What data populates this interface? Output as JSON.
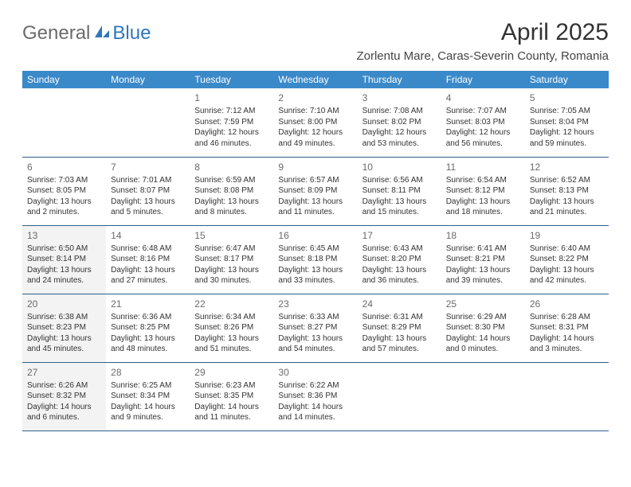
{
  "logo": {
    "general": "General",
    "blue": "Blue"
  },
  "title": "April 2025",
  "location": "Zorlentu Mare, Caras-Severin County, Romania",
  "colors": {
    "header_bg": "#3a89c9",
    "header_text": "#ffffff",
    "row_border": "#2f5f8a",
    "shaded_bg": "#f3f3f3",
    "logo_gray": "#6b6b6b",
    "logo_blue": "#2f77bb"
  },
  "day_headers": [
    "Sunday",
    "Monday",
    "Tuesday",
    "Wednesday",
    "Thursday",
    "Friday",
    "Saturday"
  ],
  "weeks": [
    [
      null,
      null,
      {
        "n": "1",
        "sr": "Sunrise: 7:12 AM",
        "ss": "Sunset: 7:59 PM",
        "dl1": "Daylight: 12 hours",
        "dl2": "and 46 minutes."
      },
      {
        "n": "2",
        "sr": "Sunrise: 7:10 AM",
        "ss": "Sunset: 8:00 PM",
        "dl1": "Daylight: 12 hours",
        "dl2": "and 49 minutes."
      },
      {
        "n": "3",
        "sr": "Sunrise: 7:08 AM",
        "ss": "Sunset: 8:02 PM",
        "dl1": "Daylight: 12 hours",
        "dl2": "and 53 minutes."
      },
      {
        "n": "4",
        "sr": "Sunrise: 7:07 AM",
        "ss": "Sunset: 8:03 PM",
        "dl1": "Daylight: 12 hours",
        "dl2": "and 56 minutes."
      },
      {
        "n": "5",
        "sr": "Sunrise: 7:05 AM",
        "ss": "Sunset: 8:04 PM",
        "dl1": "Daylight: 12 hours",
        "dl2": "and 59 minutes."
      }
    ],
    [
      {
        "n": "6",
        "sr": "Sunrise: 7:03 AM",
        "ss": "Sunset: 8:05 PM",
        "dl1": "Daylight: 13 hours",
        "dl2": "and 2 minutes."
      },
      {
        "n": "7",
        "sr": "Sunrise: 7:01 AM",
        "ss": "Sunset: 8:07 PM",
        "dl1": "Daylight: 13 hours",
        "dl2": "and 5 minutes."
      },
      {
        "n": "8",
        "sr": "Sunrise: 6:59 AM",
        "ss": "Sunset: 8:08 PM",
        "dl1": "Daylight: 13 hours",
        "dl2": "and 8 minutes."
      },
      {
        "n": "9",
        "sr": "Sunrise: 6:57 AM",
        "ss": "Sunset: 8:09 PM",
        "dl1": "Daylight: 13 hours",
        "dl2": "and 11 minutes."
      },
      {
        "n": "10",
        "sr": "Sunrise: 6:56 AM",
        "ss": "Sunset: 8:11 PM",
        "dl1": "Daylight: 13 hours",
        "dl2": "and 15 minutes."
      },
      {
        "n": "11",
        "sr": "Sunrise: 6:54 AM",
        "ss": "Sunset: 8:12 PM",
        "dl1": "Daylight: 13 hours",
        "dl2": "and 18 minutes."
      },
      {
        "n": "12",
        "sr": "Sunrise: 6:52 AM",
        "ss": "Sunset: 8:13 PM",
        "dl1": "Daylight: 13 hours",
        "dl2": "and 21 minutes."
      }
    ],
    [
      {
        "n": "13",
        "sr": "Sunrise: 6:50 AM",
        "ss": "Sunset: 8:14 PM",
        "dl1": "Daylight: 13 hours",
        "dl2": "and 24 minutes.",
        "shaded": true
      },
      {
        "n": "14",
        "sr": "Sunrise: 6:48 AM",
        "ss": "Sunset: 8:16 PM",
        "dl1": "Daylight: 13 hours",
        "dl2": "and 27 minutes."
      },
      {
        "n": "15",
        "sr": "Sunrise: 6:47 AM",
        "ss": "Sunset: 8:17 PM",
        "dl1": "Daylight: 13 hours",
        "dl2": "and 30 minutes."
      },
      {
        "n": "16",
        "sr": "Sunrise: 6:45 AM",
        "ss": "Sunset: 8:18 PM",
        "dl1": "Daylight: 13 hours",
        "dl2": "and 33 minutes."
      },
      {
        "n": "17",
        "sr": "Sunrise: 6:43 AM",
        "ss": "Sunset: 8:20 PM",
        "dl1": "Daylight: 13 hours",
        "dl2": "and 36 minutes."
      },
      {
        "n": "18",
        "sr": "Sunrise: 6:41 AM",
        "ss": "Sunset: 8:21 PM",
        "dl1": "Daylight: 13 hours",
        "dl2": "and 39 minutes."
      },
      {
        "n": "19",
        "sr": "Sunrise: 6:40 AM",
        "ss": "Sunset: 8:22 PM",
        "dl1": "Daylight: 13 hours",
        "dl2": "and 42 minutes."
      }
    ],
    [
      {
        "n": "20",
        "sr": "Sunrise: 6:38 AM",
        "ss": "Sunset: 8:23 PM",
        "dl1": "Daylight: 13 hours",
        "dl2": "and 45 minutes.",
        "shaded": true
      },
      {
        "n": "21",
        "sr": "Sunrise: 6:36 AM",
        "ss": "Sunset: 8:25 PM",
        "dl1": "Daylight: 13 hours",
        "dl2": "and 48 minutes."
      },
      {
        "n": "22",
        "sr": "Sunrise: 6:34 AM",
        "ss": "Sunset: 8:26 PM",
        "dl1": "Daylight: 13 hours",
        "dl2": "and 51 minutes."
      },
      {
        "n": "23",
        "sr": "Sunrise: 6:33 AM",
        "ss": "Sunset: 8:27 PM",
        "dl1": "Daylight: 13 hours",
        "dl2": "and 54 minutes."
      },
      {
        "n": "24",
        "sr": "Sunrise: 6:31 AM",
        "ss": "Sunset: 8:29 PM",
        "dl1": "Daylight: 13 hours",
        "dl2": "and 57 minutes."
      },
      {
        "n": "25",
        "sr": "Sunrise: 6:29 AM",
        "ss": "Sunset: 8:30 PM",
        "dl1": "Daylight: 14 hours",
        "dl2": "and 0 minutes."
      },
      {
        "n": "26",
        "sr": "Sunrise: 6:28 AM",
        "ss": "Sunset: 8:31 PM",
        "dl1": "Daylight: 14 hours",
        "dl2": "and 3 minutes."
      }
    ],
    [
      {
        "n": "27",
        "sr": "Sunrise: 6:26 AM",
        "ss": "Sunset: 8:32 PM",
        "dl1": "Daylight: 14 hours",
        "dl2": "and 6 minutes.",
        "shaded": true
      },
      {
        "n": "28",
        "sr": "Sunrise: 6:25 AM",
        "ss": "Sunset: 8:34 PM",
        "dl1": "Daylight: 14 hours",
        "dl2": "and 9 minutes."
      },
      {
        "n": "29",
        "sr": "Sunrise: 6:23 AM",
        "ss": "Sunset: 8:35 PM",
        "dl1": "Daylight: 14 hours",
        "dl2": "and 11 minutes."
      },
      {
        "n": "30",
        "sr": "Sunrise: 6:22 AM",
        "ss": "Sunset: 8:36 PM",
        "dl1": "Daylight: 14 hours",
        "dl2": "and 14 minutes."
      },
      null,
      null,
      null
    ]
  ]
}
